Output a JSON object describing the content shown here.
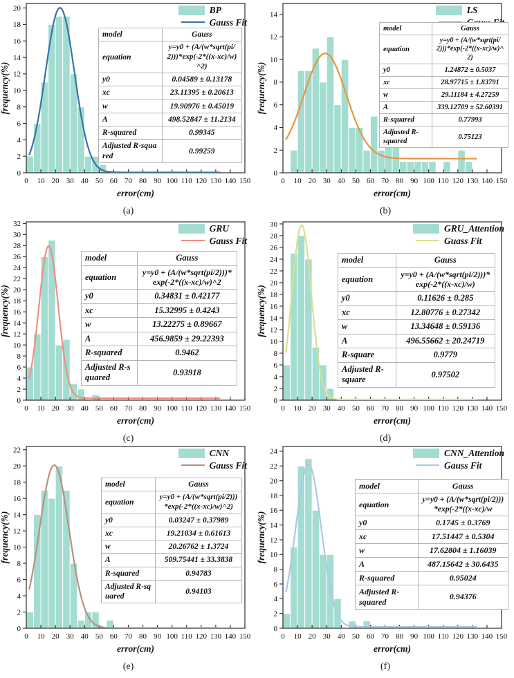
{
  "axis": {
    "xlabel": "error(cm)",
    "ylabel": "frequency(%)"
  },
  "colors": {
    "bar_fill": "#a3ddd1",
    "bar_edge": "#ffffff",
    "axis_line": "#2b2b2b",
    "table_border": "#b3b3b3"
  },
  "chart_data": [
    {
      "panel": "a",
      "caption": "(a)",
      "type": "bar",
      "legend": {
        "series": "BP",
        "fit": "Gauss Fit"
      },
      "fit_color": "#3a72a8",
      "xlabel": "error(cm)",
      "ylabel": "frequency(%)",
      "xlim": [
        0,
        150
      ],
      "xtick_step": 10,
      "ylim": [
        0,
        20.55
      ],
      "ytick_max": 20,
      "ytick_step": 2,
      "bins": {
        "start": 0,
        "width": 5,
        "values": [
          2,
          6,
          11,
          18,
          19,
          19,
          12,
          8,
          2,
          2,
          1
        ]
      },
      "gauss_params": {
        "y0": 0.04589,
        "xc": 23.11395,
        "w": 19.90976,
        "A": 498.52847
      },
      "curve_x_range": [
        2,
        133
      ],
      "table": {
        "rows": [
          {
            "label": "model",
            "value": "Gauss"
          },
          {
            "label": "equation",
            "value": "y=y0 + (A/(w*sqrt(pi/2)))*exp(-2*((x-xc)/w)^2)"
          },
          {
            "label": "y0",
            "value": "0.04589 ± 0.13178"
          },
          {
            "label": "xc",
            "value": "23.11395 ± 0.20613"
          },
          {
            "label": "w",
            "value": "19.90976 ± 0.45019"
          },
          {
            "label": "A",
            "value": "498.52847 ± 11.2134"
          },
          {
            "label": "R-squared",
            "value": "0.99345"
          },
          {
            "label": "Adjusted R-squared",
            "value": "0.99259"
          }
        ]
      }
    },
    {
      "panel": "b",
      "caption": "(b)",
      "type": "bar",
      "legend": {
        "series": "LS",
        "fit": "Gauss Fit"
      },
      "fit_color": "#e8953e",
      "xlabel": "error(cm)",
      "ylabel": "frequency(%)",
      "xlim": [
        0,
        150
      ],
      "xtick_step": 10,
      "ylim": [
        0,
        14.95
      ],
      "ytick_max": 14,
      "ytick_step": 2,
      "bins": {
        "start": 0,
        "width": 5,
        "values": [
          0,
          2,
          9,
          9,
          11,
          8,
          12,
          6,
          10,
          4,
          4,
          2,
          5,
          2,
          3,
          4,
          1,
          1,
          1,
          1,
          1,
          0,
          1,
          0,
          2,
          1
        ]
      },
      "gauss_params": {
        "y0": 1.24872,
        "xc": 28.97715,
        "w": 29.11184,
        "A": 339.12709
      },
      "curve_x_range": [
        2,
        133
      ],
      "table": {
        "rows": [
          {
            "label": "model",
            "value": "Gauss"
          },
          {
            "label": "equation",
            "value": "y=y0 + (A/(w*sqrt(pi/2)))*exp(-2*((x-xc)/w)^2)"
          },
          {
            "label": "y0",
            "value": "1.24872 ± 0.5037"
          },
          {
            "label": "xc",
            "value": "28.97715 ± 1.83791"
          },
          {
            "label": "w",
            "value": "29.11184 ± 4.27259"
          },
          {
            "label": "A",
            "value": "339.12709 ± 52.60391"
          },
          {
            "label": "R-squared",
            "value": "0.77993"
          },
          {
            "label": "Adjusted R-squared",
            "value": "0.75123"
          }
        ]
      }
    },
    {
      "panel": "c",
      "caption": "(c)",
      "type": "bar",
      "legend": {
        "series": "GRU",
        "fit": "Gauss Fit"
      },
      "fit_color": "#f48d80",
      "xlabel": "error(cm)",
      "ylabel": "frequency(%)",
      "xlim": [
        0,
        150
      ],
      "xtick_step": 10,
      "ylim": [
        0,
        32.3
      ],
      "ytick_max": 32,
      "ytick_step": 2,
      "bins": {
        "start": 0,
        "width": 5,
        "values": [
          6,
          12,
          26,
          29,
          10,
          11,
          3,
          2,
          0,
          1
        ]
      },
      "gauss_params": {
        "y0": 0.34831,
        "xc": 15.32995,
        "w": 13.22275,
        "A": 456.9859
      },
      "curve_x_range": [
        2,
        133
      ],
      "table": {
        "rows": [
          {
            "label": "model",
            "value": "Gauss"
          },
          {
            "label": "equation",
            "value": "y=y0 + (A/(w*sqrt(pi/2)))*exp(-2*((x-xc)/w)^2"
          },
          {
            "label": "y0",
            "value": "0.34831 ± 0.42177"
          },
          {
            "label": "xc",
            "value": "15.32995 ± 0.4243"
          },
          {
            "label": "w",
            "value": "13.22275 ± 0.89667"
          },
          {
            "label": "A",
            "value": "456.9859 ± 29.22393"
          },
          {
            "label": "R-squared",
            "value": "0.9462"
          },
          {
            "label": "Adjusted R-squared",
            "value": "0.93918"
          }
        ]
      }
    },
    {
      "panel": "d",
      "caption": "(d)",
      "type": "bar",
      "legend": {
        "series": "GRU_Attention",
        "fit": "Guass Fit"
      },
      "fit_color": "#dbdf8c",
      "xlabel": "error(cm)",
      "ylabel": "frequency(%)",
      "xlim": [
        0,
        150
      ],
      "xtick_step": 10,
      "ylim": [
        0,
        30.35
      ],
      "ytick_max": 30,
      "ytick_step": 2,
      "bins": {
        "start": 0,
        "width": 5,
        "values": [
          6,
          25,
          28,
          24,
          9,
          6,
          2
        ]
      },
      "gauss_params": {
        "y0": 0.11626,
        "xc": 12.80776,
        "w": 13.34648,
        "A": 496.55662
      },
      "curve_x_range": [
        2,
        133
      ],
      "table": {
        "rows": [
          {
            "label": "model",
            "value": "Gauss"
          },
          {
            "label": "equation",
            "value": "y=y0 + (A/(w*sqrt(pi/2)))*exp(-2*((x-xc)/w)"
          },
          {
            "label": "y0",
            "value": "0.11626 ± 0.285"
          },
          {
            "label": "xc",
            "value": "12.80776 ± 0.27342"
          },
          {
            "label": "w",
            "value": "13.34648 ± 0.59136"
          },
          {
            "label": "A",
            "value": "496.55662 ± 20.24719"
          },
          {
            "label": "R-square",
            "value": "0.9779"
          },
          {
            "label": "Adjusted R-square",
            "value": "0.97502"
          }
        ]
      }
    },
    {
      "panel": "e",
      "caption": "(e)",
      "type": "bar",
      "legend": {
        "series": "CNN",
        "fit": "Gauss Fit"
      },
      "fit_color": "#ba8e80",
      "xlabel": "error(cm)",
      "ylabel": "frequency(%)",
      "xlim": [
        0,
        150
      ],
      "xtick_step": 10,
      "ylim": [
        0,
        22.4
      ],
      "ytick_max": 22,
      "ytick_step": 2,
      "bins": {
        "start": 0,
        "width": 5,
        "values": [
          2,
          14,
          17,
          16,
          20,
          17,
          8,
          1,
          2,
          2,
          0,
          1
        ]
      },
      "gauss_params": {
        "y0": 0.03247,
        "xc": 19.21034,
        "w": 20.26762,
        "A": 509.75441
      },
      "curve_x_range": [
        2,
        133
      ],
      "table": {
        "rows": [
          {
            "label": "model",
            "value": "Gauss"
          },
          {
            "label": "equation",
            "value": "y=y0 + (A/(w*sqrt(pi/2)))*exp(-2*((x-xc)/w)^2)"
          },
          {
            "label": "y0",
            "value": "0.03247 ± 0.37989"
          },
          {
            "label": "xc",
            "value": "19.21034 ± 0.61613"
          },
          {
            "label": "w",
            "value": "20.26762 ± 1.3724"
          },
          {
            "label": "A",
            "value": "509.75441 ± 33.3838"
          },
          {
            "label": "R-squared",
            "value": "0.94783"
          },
          {
            "label": "Adjusted R-squared",
            "value": "0.94103"
          }
        ]
      }
    },
    {
      "panel": "f",
      "caption": "(f)",
      "type": "bar",
      "legend": {
        "series": "CNN_Attention",
        "fit": "Gauss Fit"
      },
      "fit_color": "#adc7e8",
      "xlabel": "error(cm)",
      "ylabel": "frequency(%)",
      "xlim": [
        0,
        150
      ],
      "xtick_step": 10,
      "ylim": [
        0,
        24.65
      ],
      "ytick_max": 24,
      "ytick_step": 2,
      "bins": {
        "start": 0,
        "width": 5,
        "values": [
          2,
          11,
          22,
          23,
          16,
          10,
          10,
          4,
          0,
          1,
          0,
          1
        ]
      },
      "gauss_params": {
        "y0": 0.1745,
        "xc": 17.51447,
        "w": 17.62804,
        "A": 487.15642
      },
      "curve_x_range": [
        2,
        133
      ],
      "table": {
        "rows": [
          {
            "label": "model",
            "value": "Gauss"
          },
          {
            "label": "equation",
            "value": "y=y0 + (A/(w*sqrt(pi/2)))*exp(-2*((x-xc)/w"
          },
          {
            "label": "y0",
            "value": "0.1745 ± 0.3769"
          },
          {
            "label": "xc",
            "value": "17.51447 ± 0.5304"
          },
          {
            "label": "w",
            "value": "17.62804 ± 1.16039"
          },
          {
            "label": "A",
            "value": "487.15642 ± 30.6435"
          },
          {
            "label": "R-squared",
            "value": "0.95024"
          },
          {
            "label": "Adjusted R-squared",
            "value": "0.94376"
          }
        ]
      }
    }
  ]
}
